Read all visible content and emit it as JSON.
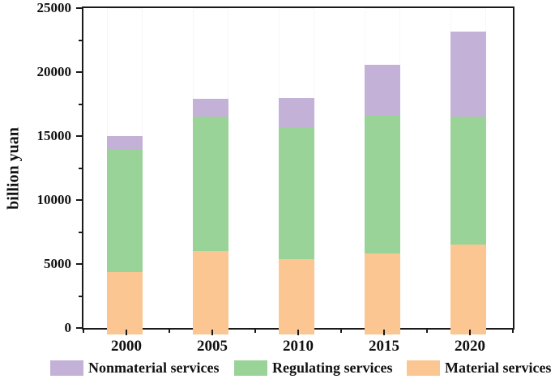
{
  "figure": {
    "background_color": "#ffffff",
    "axis_color": "#1a1a1a",
    "text_color": "#111111"
  },
  "chart_data": {
    "type": "bar",
    "stacked": true,
    "title": "",
    "xlabel": "",
    "ylabel": "billion yuan",
    "categories": [
      "2000",
      "2005",
      "2010",
      "2015",
      "2020"
    ],
    "series": [
      {
        "name": "Material services",
        "color": "#fbc692",
        "values": [
          4900,
          6500,
          5900,
          6300,
          7000
        ]
      },
      {
        "name": "Regulating services",
        "color": "#99d398",
        "values": [
          9550,
          10500,
          10300,
          10850,
          10000
        ]
      },
      {
        "name": "Nonmaterial services",
        "color": "#c4b1d7",
        "values": [
          1050,
          1400,
          2250,
          3950,
          6650
        ]
      }
    ],
    "stack_totals": [
      15500,
      18400,
      18450,
      21100,
      23650
    ],
    "ylim": [
      0,
      25000
    ],
    "y_major_ticks": [
      "0",
      "5000",
      "10000",
      "15000",
      "20000",
      "25000"
    ],
    "y_major_tick_values": [
      0,
      5000,
      10000,
      15000,
      20000,
      25000
    ],
    "y_minor_step": 2500,
    "grid": false,
    "legend_position": "bottom",
    "legend_order": [
      "Nonmaterial services",
      "Regulating services",
      "Material services"
    ]
  }
}
